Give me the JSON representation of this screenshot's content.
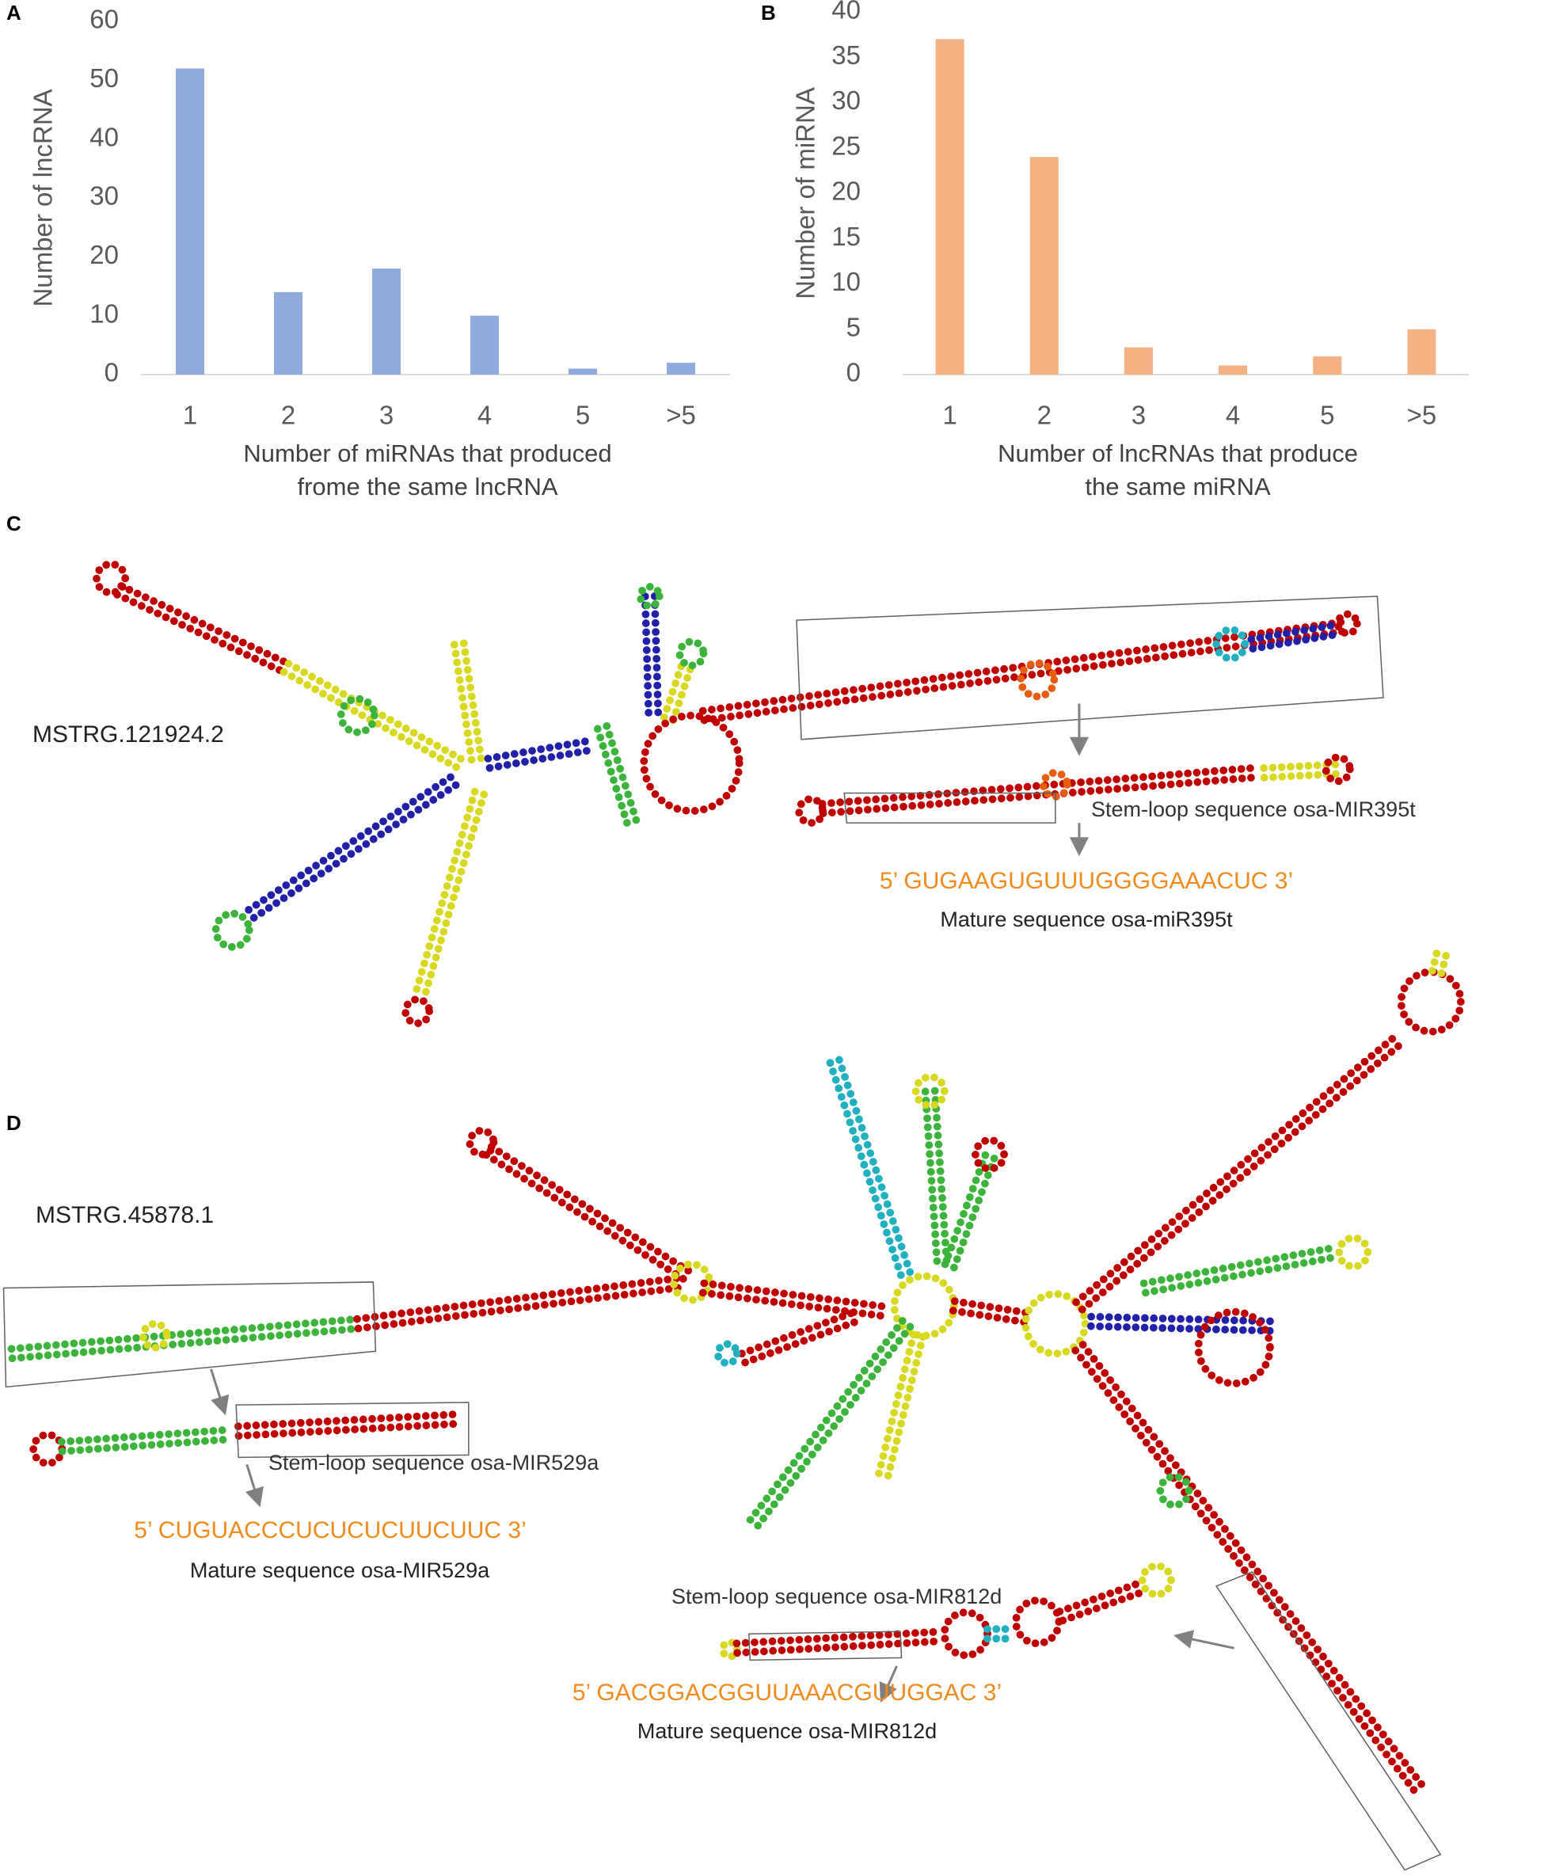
{
  "chart_data": [
    {
      "type": "bar",
      "panel": "A",
      "ylabel": "Number of lncRNA",
      "xlabel": [
        "Number of miRNAs that produced",
        "frome the same lncRNA"
      ],
      "categories": [
        "1",
        "2",
        "3",
        "4",
        "5",
        ">5"
      ],
      "values": [
        52,
        14,
        18,
        10,
        1,
        2
      ],
      "color": "#8faadc",
      "ylim": [
        0,
        60
      ],
      "yticks": [
        0,
        10,
        20,
        30,
        40,
        50,
        60
      ]
    },
    {
      "type": "bar",
      "panel": "B",
      "ylabel": "Number of miRNA",
      "xlabel": [
        "Number of lncRNAs that produce",
        "the same miRNA"
      ],
      "categories": [
        "1",
        "2",
        "3",
        "4",
        "5",
        ">5"
      ],
      "values": [
        37,
        24,
        3,
        1,
        2,
        5
      ],
      "color": "#f4b183",
      "ylim": [
        0,
        40
      ],
      "yticks": [
        0,
        5,
        10,
        15,
        20,
        25,
        30,
        35,
        40
      ]
    }
  ],
  "panels": [
    {
      "label": "C",
      "transcript": "MSTRG.121924.2",
      "annotations": [
        {
          "stem_loop": "Stem-loop sequence osa-MIR395t",
          "sequence": "5’ GUGAAGUGUUUGGGGAAACUC 3’",
          "mature": "Mature sequence osa-miR395t"
        }
      ]
    },
    {
      "label": "D",
      "transcript": "MSTRG.45878.1",
      "annotations": [
        {
          "stem_loop": "Stem-loop sequence osa-MIR529a",
          "sequence": "5’ CUGUACCCUCUCUCUUCUUC 3’",
          "mature": "Mature sequence osa-MIR529a"
        },
        {
          "stem_loop": "Stem-loop sequence osa-MIR812d",
          "sequence": "5’ GACGGACGGUUAAACGUUGGAC 3’",
          "mature": "Mature sequence osa-MIR812d"
        }
      ]
    }
  ]
}
